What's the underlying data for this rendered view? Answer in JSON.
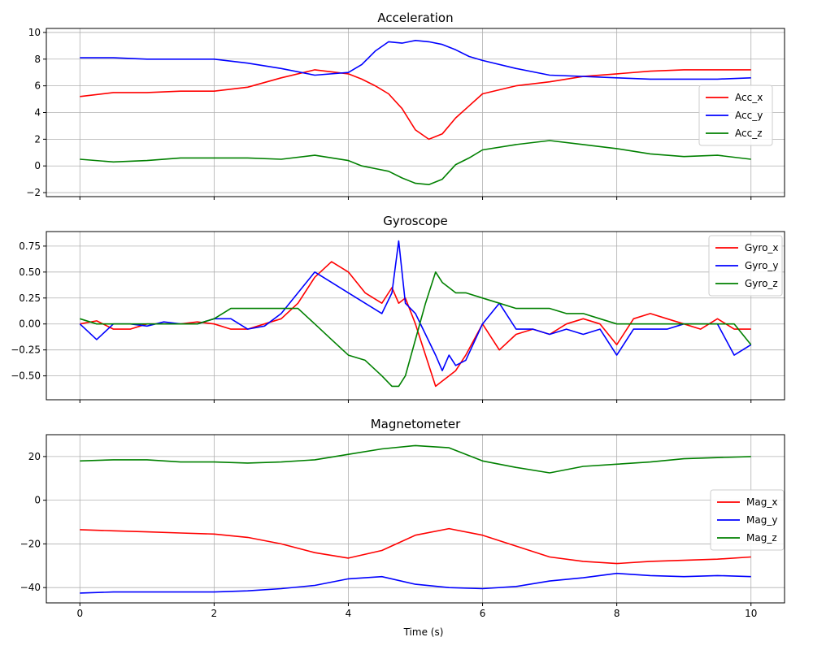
{
  "figure": {
    "xlabel": "Time (s)"
  },
  "chart_data": [
    {
      "type": "line",
      "title": "Acceleration",
      "xlabel": "",
      "ylabel": "",
      "xlim": [
        -0.5,
        10.5
      ],
      "ylim": [
        -2.3,
        10.3
      ],
      "xticks": [
        0,
        2,
        4,
        6,
        8,
        10
      ],
      "yticks": [
        -2,
        0,
        2,
        4,
        6,
        8,
        10
      ],
      "show_xtick_labels": false,
      "grid": true,
      "legend": "center-right",
      "x": [
        0,
        0.5,
        1,
        1.5,
        2,
        2.5,
        3,
        3.5,
        4,
        4.2,
        4.4,
        4.6,
        4.8,
        5,
        5.2,
        5.4,
        5.6,
        5.8,
        6,
        6.5,
        7,
        7.5,
        8,
        8.5,
        9,
        9.5,
        10
      ],
      "series": [
        {
          "name": "Acc_x",
          "color": "#ff0000",
          "values": [
            5.2,
            5.5,
            5.5,
            5.6,
            5.6,
            5.9,
            6.6,
            7.2,
            6.9,
            6.5,
            6.0,
            5.4,
            4.3,
            2.7,
            2.0,
            2.4,
            3.6,
            4.5,
            5.4,
            6.0,
            6.3,
            6.7,
            6.9,
            7.1,
            7.2,
            7.2,
            7.2
          ]
        },
        {
          "name": "Acc_y",
          "color": "#0000ff",
          "values": [
            8.1,
            8.1,
            8.0,
            8.0,
            8.0,
            7.7,
            7.3,
            6.8,
            7.0,
            7.6,
            8.6,
            9.3,
            9.2,
            9.4,
            9.3,
            9.1,
            8.7,
            8.2,
            7.9,
            7.3,
            6.8,
            6.7,
            6.6,
            6.5,
            6.5,
            6.5,
            6.6
          ]
        },
        {
          "name": "Acc_z",
          "color": "#008000",
          "values": [
            0.5,
            0.3,
            0.4,
            0.6,
            0.6,
            0.6,
            0.5,
            0.8,
            0.4,
            0.0,
            -0.2,
            -0.4,
            -0.9,
            -1.3,
            -1.4,
            -1.0,
            0.1,
            0.6,
            1.2,
            1.6,
            1.9,
            1.6,
            1.3,
            0.9,
            0.7,
            0.8,
            0.5
          ]
        }
      ]
    },
    {
      "type": "line",
      "title": "Gyroscope",
      "xlabel": "",
      "ylabel": "",
      "xlim": [
        -0.5,
        10.5
      ],
      "ylim": [
        -0.73,
        0.89
      ],
      "xticks": [
        0,
        2,
        4,
        6,
        8,
        10
      ],
      "yticks": [
        -0.5,
        -0.25,
        0.0,
        0.25,
        0.5,
        0.75
      ],
      "ytick_labels": [
        "−0.50",
        "−0.25",
        "0.00",
        "0.25",
        "0.50",
        "0.75"
      ],
      "show_xtick_labels": false,
      "grid": true,
      "legend": "top-right",
      "x": [
        0,
        0.25,
        0.5,
        0.75,
        1,
        1.25,
        1.5,
        1.75,
        2,
        2.25,
        2.5,
        2.75,
        3,
        3.25,
        3.5,
        3.75,
        4,
        4.25,
        4.5,
        4.65,
        4.75,
        4.85,
        5,
        5.15,
        5.3,
        5.4,
        5.5,
        5.6,
        5.75,
        6,
        6.25,
        6.5,
        6.75,
        7,
        7.25,
        7.5,
        7.75,
        8,
        8.25,
        8.5,
        8.75,
        9,
        9.25,
        9.5,
        9.75,
        10
      ],
      "series": [
        {
          "name": "Gyro_x",
          "color": "#ff0000",
          "values": [
            0.0,
            0.03,
            -0.05,
            -0.05,
            0.0,
            0.0,
            0.0,
            0.02,
            0.0,
            -0.05,
            -0.05,
            0.0,
            0.05,
            0.2,
            0.45,
            0.6,
            0.5,
            0.3,
            0.2,
            0.35,
            0.2,
            0.25,
            0.0,
            -0.3,
            -0.6,
            -0.55,
            -0.5,
            -0.45,
            -0.3,
            0.0,
            -0.25,
            -0.1,
            -0.05,
            -0.1,
            0.0,
            0.05,
            0.0,
            -0.2,
            0.05,
            0.1,
            0.05,
            0.0,
            -0.05,
            0.05,
            -0.05,
            -0.05
          ]
        },
        {
          "name": "Gyro_y",
          "color": "#0000ff",
          "values": [
            0.0,
            -0.15,
            0.0,
            0.0,
            -0.02,
            0.02,
            0.0,
            0.0,
            0.05,
            0.05,
            -0.05,
            -0.02,
            0.1,
            0.3,
            0.5,
            0.4,
            0.3,
            0.2,
            0.1,
            0.3,
            0.8,
            0.2,
            0.1,
            -0.1,
            -0.3,
            -0.45,
            -0.3,
            -0.4,
            -0.35,
            0.0,
            0.2,
            -0.05,
            -0.05,
            -0.1,
            -0.05,
            -0.1,
            -0.05,
            -0.3,
            -0.05,
            -0.05,
            -0.05,
            0.0,
            0.0,
            0.0,
            -0.3,
            -0.2
          ]
        },
        {
          "name": "Gyro_z",
          "color": "#008000",
          "values": [
            0.05,
            0.0,
            0.0,
            0.0,
            0.0,
            0.0,
            0.0,
            0.0,
            0.05,
            0.15,
            0.15,
            0.15,
            0.15,
            0.15,
            0.0,
            -0.15,
            -0.3,
            -0.35,
            -0.5,
            -0.6,
            -0.6,
            -0.5,
            -0.15,
            0.2,
            0.5,
            0.4,
            0.35,
            0.3,
            0.3,
            0.25,
            0.2,
            0.15,
            0.15,
            0.15,
            0.1,
            0.1,
            0.05,
            0.0,
            0.0,
            0.0,
            0.0,
            0.0,
            0.0,
            0.0,
            0.0,
            -0.2
          ]
        }
      ]
    },
    {
      "type": "line",
      "title": "Magnetometer",
      "xlabel": "Time (s)",
      "ylabel": "",
      "xlim": [
        -0.5,
        10.5
      ],
      "ylim": [
        -47,
        30
      ],
      "xticks": [
        0,
        2,
        4,
        6,
        8,
        10
      ],
      "yticks": [
        -40,
        -20,
        0,
        20
      ],
      "ytick_labels": [
        "−40",
        "−20",
        "0",
        "20"
      ],
      "show_xtick_labels": true,
      "grid": true,
      "legend": "center-right",
      "x": [
        0,
        0.5,
        1,
        1.5,
        2,
        2.5,
        3,
        3.5,
        4,
        4.5,
        5,
        5.5,
        6,
        6.5,
        7,
        7.5,
        8,
        8.5,
        9,
        9.5,
        10
      ],
      "series": [
        {
          "name": "Mag_x",
          "color": "#ff0000",
          "values": [
            -13.5,
            -14,
            -14.5,
            -15,
            -15.5,
            -17,
            -20,
            -24,
            -26.5,
            -23,
            -16,
            -13,
            -16,
            -21,
            -26,
            -28,
            -29,
            -28,
            -27.5,
            -27,
            -26
          ]
        },
        {
          "name": "Mag_y",
          "color": "#0000ff",
          "values": [
            -42.5,
            -42,
            -42,
            -42,
            -42,
            -41.5,
            -40.5,
            -39,
            -36,
            -35,
            -38.5,
            -40,
            -40.5,
            -39.5,
            -37,
            -35.5,
            -33.5,
            -34.5,
            -35,
            -34.5,
            -35
          ]
        },
        {
          "name": "Mag_z",
          "color": "#008000",
          "values": [
            18,
            18.5,
            18.5,
            17.5,
            17.5,
            17,
            17.5,
            18.5,
            21,
            23.5,
            25,
            24,
            18,
            15,
            12.5,
            15.5,
            16.5,
            17.5,
            19,
            19.5,
            20
          ]
        }
      ]
    }
  ]
}
